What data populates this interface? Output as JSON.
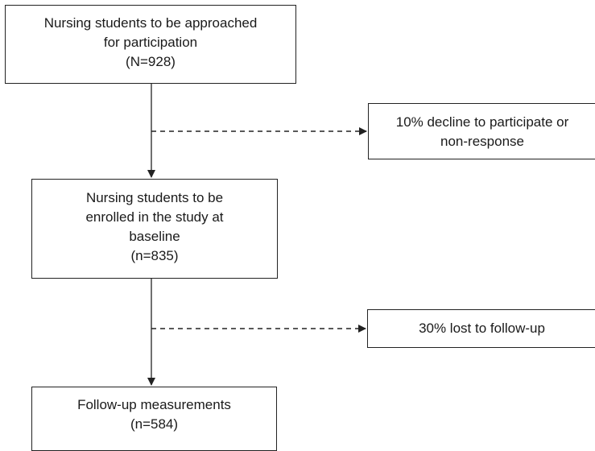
{
  "nodes": {
    "approached": {
      "line1": "Nursing students to be approached",
      "line2": "for participation",
      "line3": "(N=928)"
    },
    "enrolled": {
      "line1": "Nursing students to be",
      "line2": "enrolled in the study at",
      "line3": "baseline",
      "line4": "(n=835)"
    },
    "followup": {
      "line1": "Follow-up measurements",
      "line2": "(n=584)"
    },
    "decline": {
      "line1": "10% decline to participate or",
      "line2": "non-response"
    },
    "lost": {
      "line1": "30% lost to follow-up"
    }
  },
  "edges": [
    {
      "from": "approached",
      "to": "enrolled",
      "style": "solid"
    },
    {
      "from": "approached",
      "to": "decline",
      "style": "dashed"
    },
    {
      "from": "enrolled",
      "to": "followup",
      "style": "solid"
    },
    {
      "from": "enrolled",
      "to": "lost",
      "style": "dashed"
    }
  ],
  "colors": {
    "stroke": "#222222",
    "text": "#1a1a1a",
    "background": "#ffffff"
  }
}
